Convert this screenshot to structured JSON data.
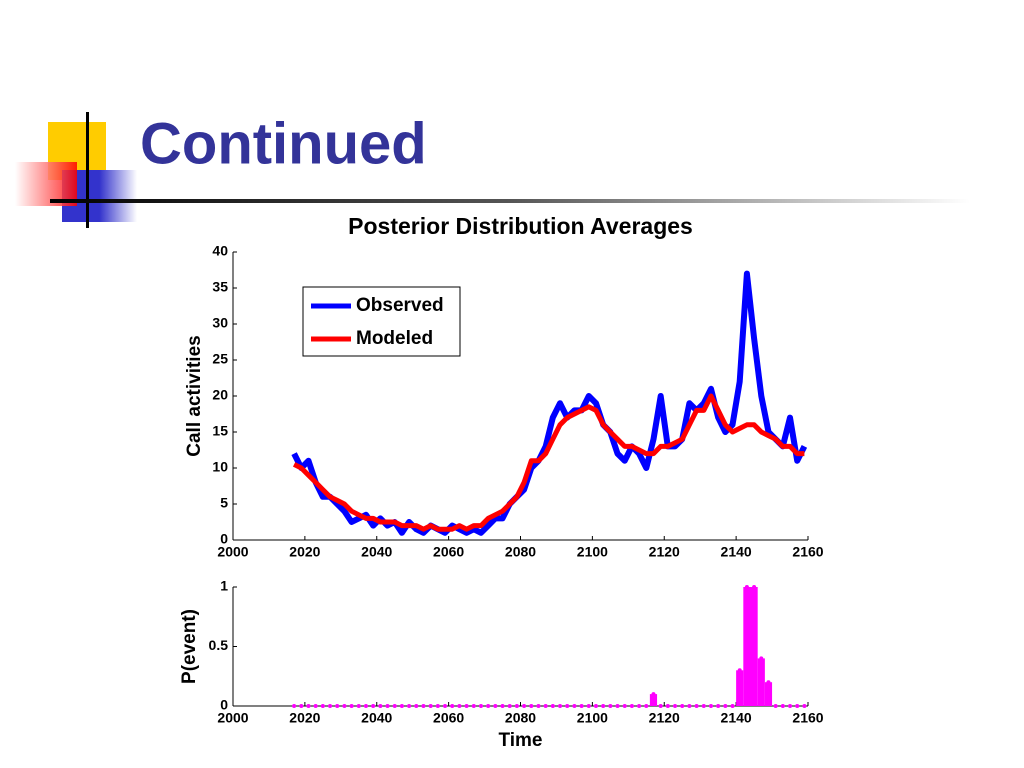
{
  "header": {
    "title": "Continued"
  },
  "chart_data": [
    {
      "type": "line",
      "title": "Posterior Distribution Averages",
      "ylabel": "Call activities",
      "x": [
        2017,
        2019,
        2021,
        2023,
        2025,
        2027,
        2029,
        2031,
        2033,
        2035,
        2037,
        2039,
        2041,
        2043,
        2045,
        2047,
        2049,
        2051,
        2053,
        2055,
        2057,
        2059,
        2061,
        2063,
        2065,
        2067,
        2069,
        2071,
        2073,
        2075,
        2077,
        2079,
        2081,
        2083,
        2085,
        2087,
        2089,
        2091,
        2093,
        2095,
        2097,
        2099,
        2101,
        2103,
        2105,
        2107,
        2109,
        2111,
        2113,
        2115,
        2117,
        2119,
        2121,
        2123,
        2125,
        2127,
        2129,
        2131,
        2133,
        2135,
        2137,
        2139,
        2141,
        2143,
        2145,
        2147,
        2149,
        2151,
        2153,
        2155,
        2157,
        2159
      ],
      "series": [
        {
          "name": "Observed",
          "color": "#0000ff",
          "values": [
            12,
            10,
            11,
            8,
            6,
            6,
            5,
            4,
            2.5,
            3,
            3.5,
            2,
            3,
            2,
            2.5,
            1,
            2.5,
            1.5,
            1,
            2,
            1.5,
            1,
            2,
            1.5,
            1,
            1.5,
            1,
            2,
            3,
            3,
            5,
            6,
            7,
            10,
            11,
            13,
            17,
            19,
            17,
            18,
            18,
            20,
            19,
            16,
            15,
            12,
            11,
            13,
            12,
            10,
            14,
            20,
            13,
            13,
            14,
            19,
            18,
            19,
            21,
            17,
            15,
            16,
            22,
            37,
            28,
            20,
            15,
            14,
            13,
            17,
            11,
            13
          ]
        },
        {
          "name": "Modeled",
          "color": "#ff0000",
          "values": [
            10.5,
            10,
            9,
            8,
            7,
            6,
            5.5,
            5,
            4,
            3.5,
            3,
            3,
            2.5,
            2.5,
            2.5,
            2,
            2,
            2,
            1.5,
            2,
            1.5,
            1.5,
            1.5,
            2,
            1.5,
            2,
            2,
            3,
            3.5,
            4,
            5,
            6,
            8,
            11,
            11,
            12,
            14,
            16,
            17,
            17.5,
            18,
            18.5,
            18,
            16,
            15,
            14,
            13,
            13,
            12.5,
            12,
            12,
            13,
            13,
            13.5,
            14,
            16,
            18,
            18,
            20,
            18,
            16,
            15,
            15.5,
            16,
            16,
            15,
            14.5,
            14,
            13,
            13,
            12,
            12
          ]
        }
      ],
      "xlim": [
        2000,
        2160
      ],
      "xticks": [
        2000,
        2020,
        2040,
        2060,
        2080,
        2100,
        2120,
        2140,
        2160
      ],
      "ylim": [
        0,
        40
      ],
      "yticks": [
        0,
        5,
        10,
        15,
        20,
        25,
        30,
        35,
        40
      ],
      "legend": "upper left"
    },
    {
      "type": "stem",
      "ylabel": "P(event)",
      "xlabel": "Time",
      "color": "#ff00ff",
      "x": [
        2017,
        2019,
        2021,
        2023,
        2025,
        2027,
        2029,
        2031,
        2033,
        2035,
        2037,
        2039,
        2041,
        2043,
        2045,
        2047,
        2049,
        2051,
        2053,
        2055,
        2057,
        2059,
        2061,
        2063,
        2065,
        2067,
        2069,
        2071,
        2073,
        2075,
        2077,
        2079,
        2081,
        2083,
        2085,
        2087,
        2089,
        2091,
        2093,
        2095,
        2097,
        2099,
        2101,
        2103,
        2105,
        2107,
        2109,
        2111,
        2113,
        2115,
        2117,
        2119,
        2121,
        2123,
        2125,
        2127,
        2129,
        2131,
        2133,
        2135,
        2137,
        2139,
        2141,
        2143,
        2145,
        2147,
        2149,
        2151,
        2153,
        2155,
        2157,
        2159
      ],
      "values": [
        0,
        0,
        0,
        0,
        0,
        0,
        0,
        0,
        0,
        0,
        0,
        0,
        0,
        0,
        0,
        0,
        0,
        0,
        0,
        0,
        0,
        0,
        0,
        0,
        0,
        0,
        0,
        0,
        0,
        0,
        0,
        0,
        0,
        0,
        0,
        0,
        0,
        0,
        0,
        0,
        0,
        0,
        0,
        0,
        0,
        0,
        0,
        0,
        0,
        0,
        0.1,
        0,
        0,
        0,
        0,
        0,
        0,
        0,
        0,
        0,
        0,
        0,
        0.3,
        1,
        1,
        0.4,
        0.2,
        0,
        0,
        0,
        0,
        0
      ],
      "xlim": [
        2000,
        2160
      ],
      "xticks": [
        2000,
        2020,
        2040,
        2060,
        2080,
        2100,
        2120,
        2140,
        2160
      ],
      "ylim": [
        0,
        1
      ],
      "yticks": [
        0,
        0.5,
        1
      ]
    }
  ]
}
